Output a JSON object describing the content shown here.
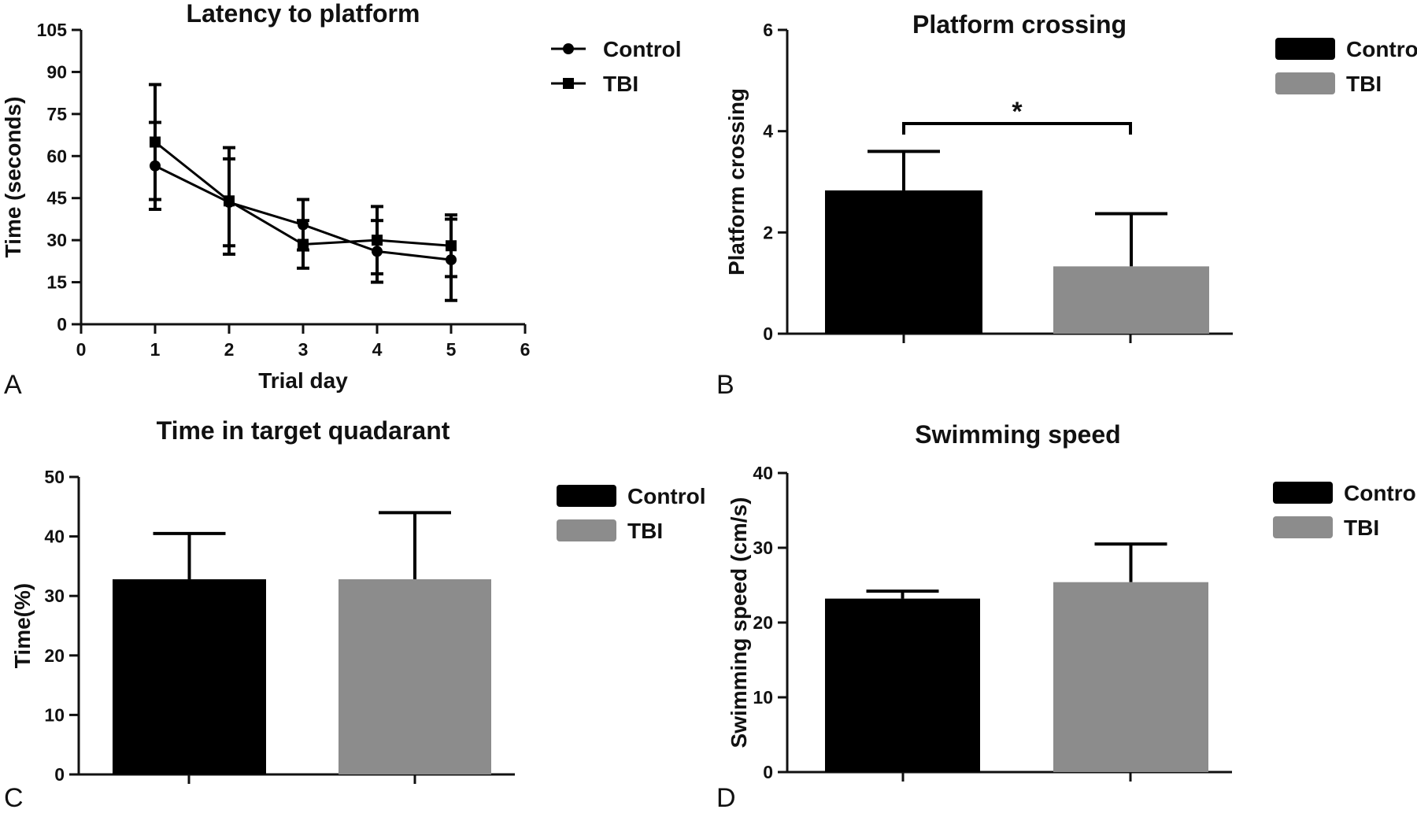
{
  "colors": {
    "control": "#000000",
    "tbi": "#8c8c8c",
    "axis": "#111111"
  },
  "legend": {
    "control_label": "Control",
    "tbi_label": "TBI"
  },
  "chart_data": [
    {
      "panel": "A",
      "type": "line",
      "title": "Latency to platform",
      "xlabel": "Trial day",
      "ylabel": "Time (seconds)",
      "xlim": [
        0,
        6
      ],
      "ylim": [
        0,
        105
      ],
      "xticks": [
        0,
        1,
        2,
        3,
        4,
        5,
        6
      ],
      "yticks": [
        0,
        15,
        30,
        45,
        60,
        75,
        90,
        105
      ],
      "legend_position": "top-right outside",
      "x": [
        1,
        2,
        3,
        4,
        5
      ],
      "series": [
        {
          "name": "Control",
          "marker": "circle",
          "values": [
            56.5,
            43.5,
            35.5,
            26,
            23
          ],
          "errors": [
            15.5,
            15.5,
            9,
            11,
            14.5
          ]
        },
        {
          "name": "TBI",
          "marker": "square",
          "values": [
            65,
            44,
            28.5,
            30,
            28
          ],
          "errors": [
            20.5,
            19,
            8.5,
            12,
            11
          ]
        }
      ]
    },
    {
      "panel": "B",
      "type": "bar",
      "title": "Platform crossing",
      "xlabel": "",
      "ylabel": "Platform crossing",
      "ylim": [
        0,
        6
      ],
      "yticks": [
        0,
        2,
        4,
        6
      ],
      "legend_position": "top-right outside",
      "categories": [
        "Control",
        "TBI"
      ],
      "values": [
        2.83,
        1.33
      ],
      "errors": [
        0.77,
        1.04
      ],
      "significance": {
        "between": [
          0,
          1
        ],
        "label": "*",
        "y": 4.15
      }
    },
    {
      "panel": "C",
      "type": "bar",
      "title": "Time in target quadarant",
      "xlabel": "",
      "ylabel": "Time(%)",
      "ylim": [
        0,
        50
      ],
      "yticks": [
        0,
        10,
        20,
        30,
        40,
        50
      ],
      "legend_position": "top-right outside",
      "categories": [
        "Control",
        "TBI"
      ],
      "values": [
        32.8,
        32.8
      ],
      "errors": [
        7.7,
        11.2
      ]
    },
    {
      "panel": "D",
      "type": "bar",
      "title": "Swimming speed",
      "xlabel": "",
      "ylabel": "Swimming speed (cm/s)",
      "ylim": [
        0,
        40
      ],
      "yticks": [
        0,
        10,
        20,
        30,
        40
      ],
      "legend_position": "top-right outside",
      "categories": [
        "Control",
        "TBI"
      ],
      "values": [
        23.2,
        25.4
      ],
      "errors": [
        1.0,
        5.1
      ]
    }
  ]
}
